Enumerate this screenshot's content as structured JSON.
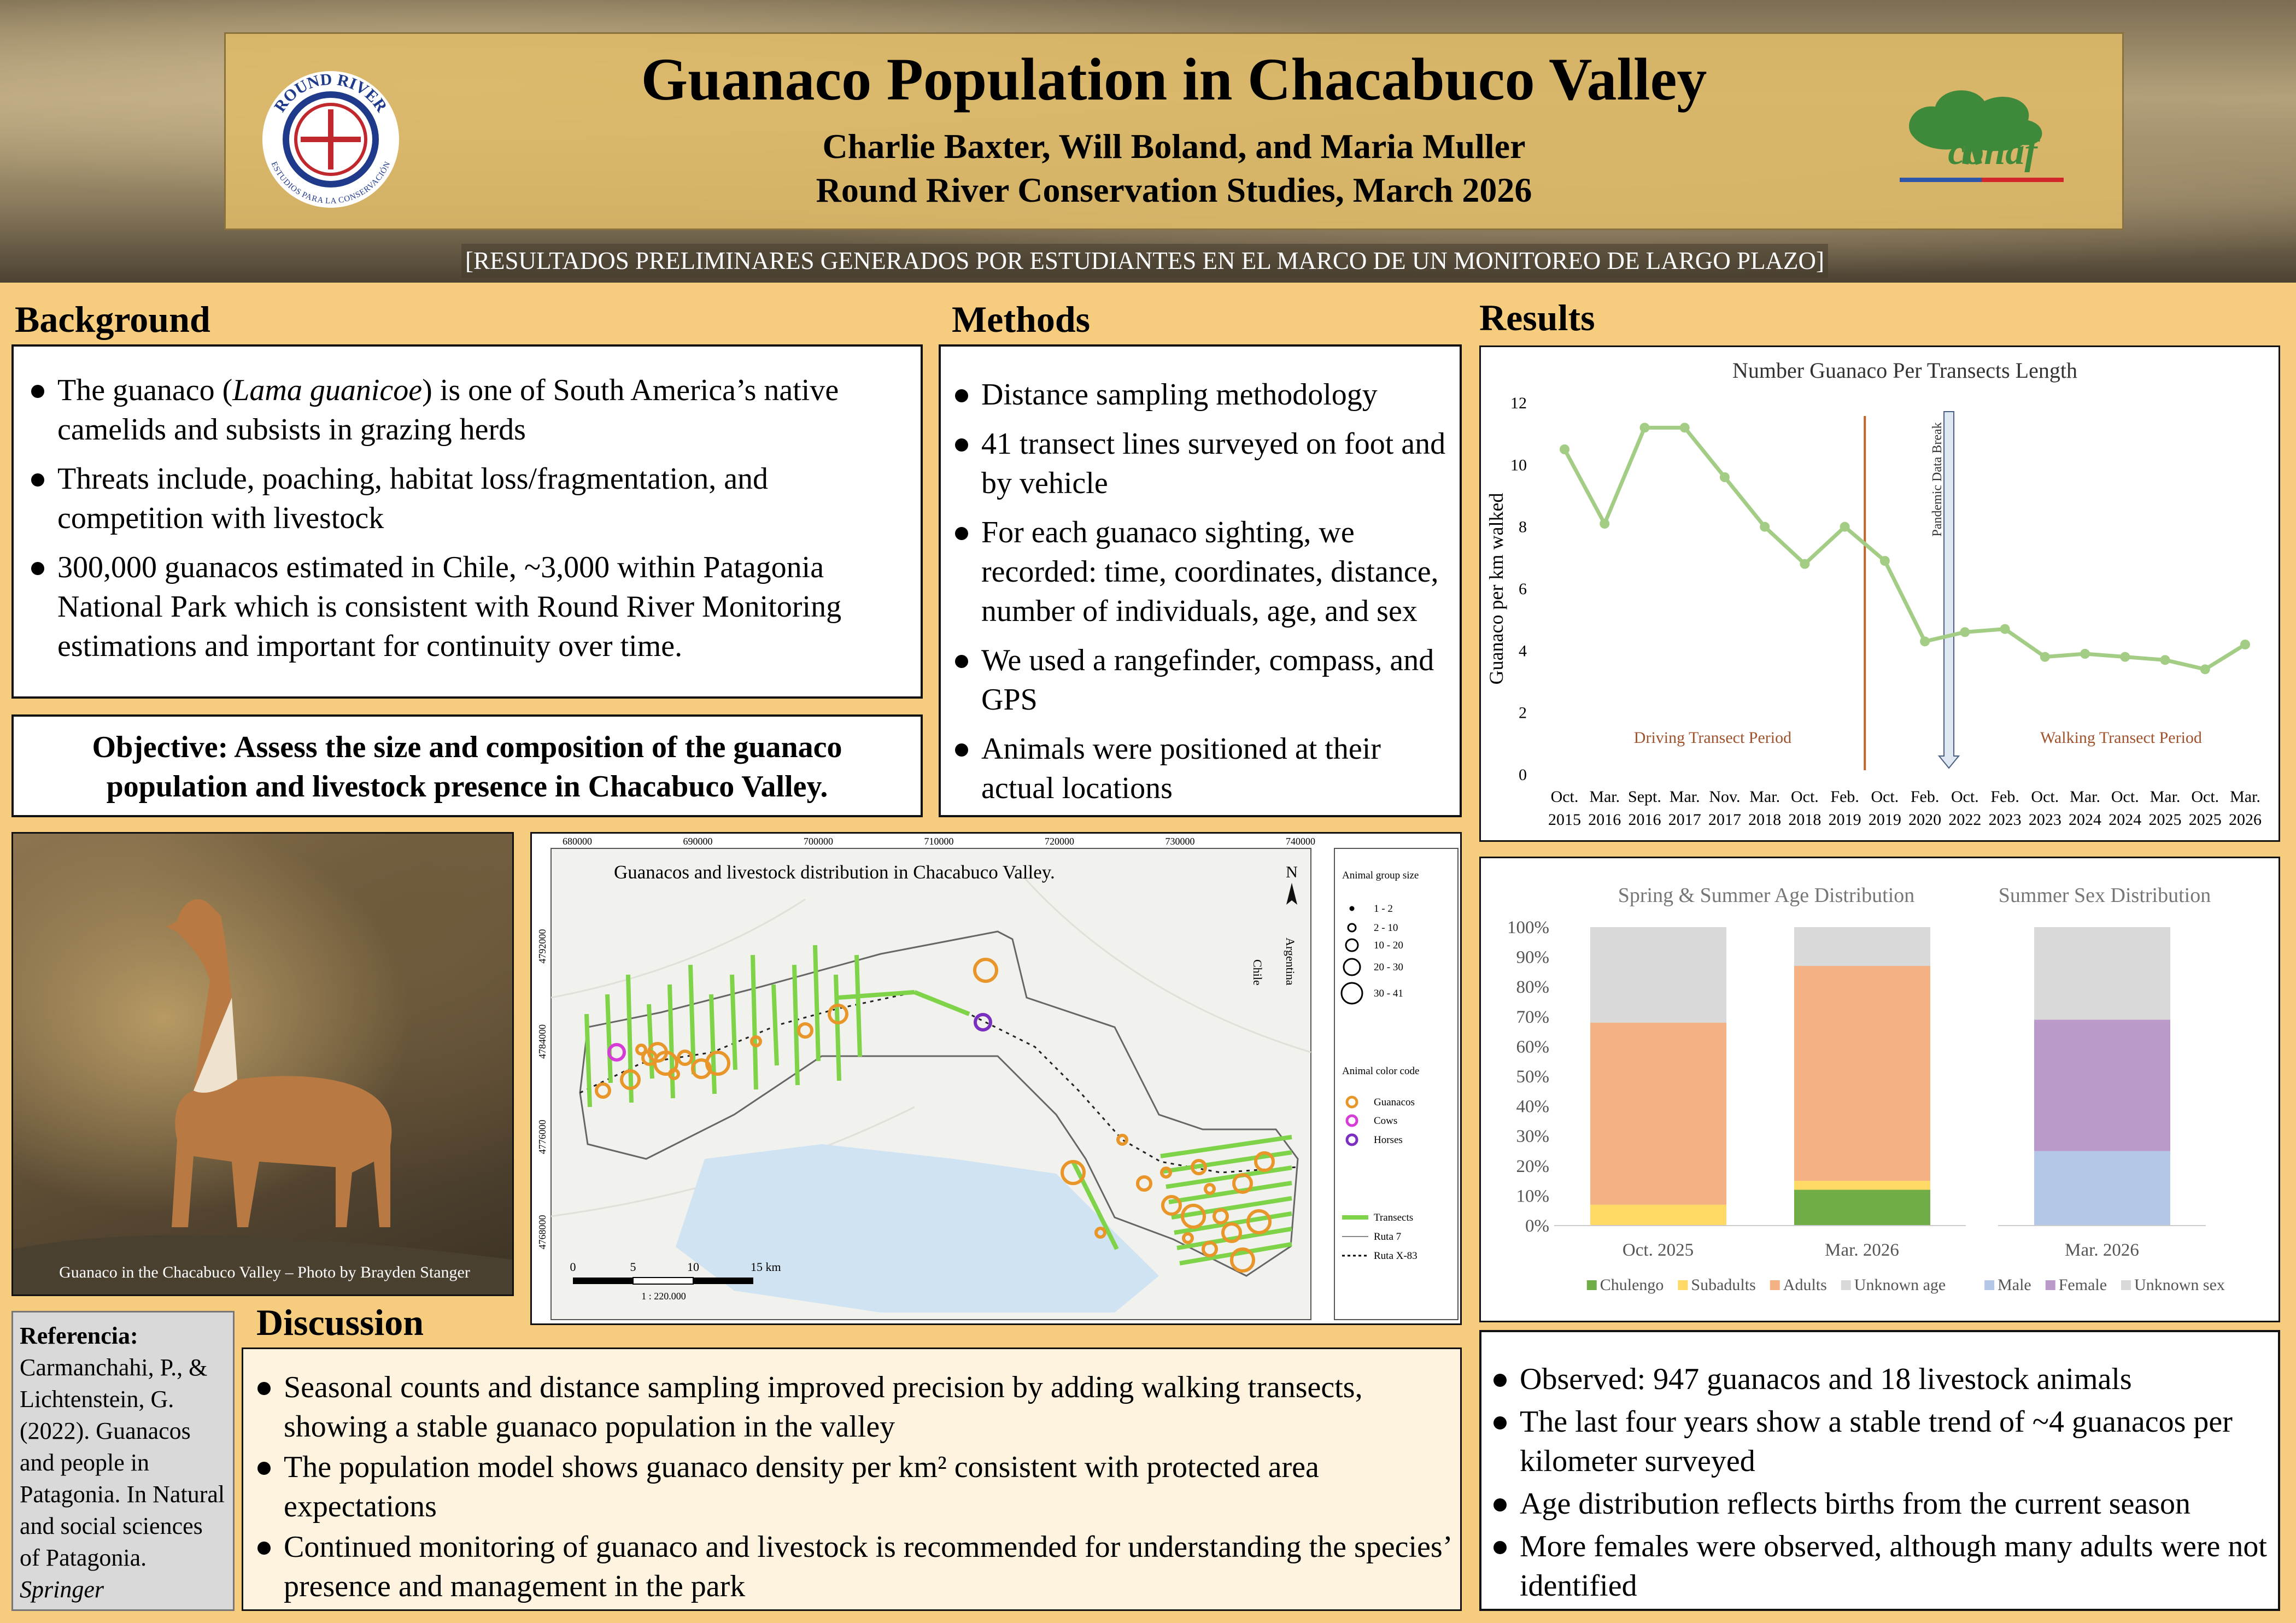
{
  "header": {
    "title": "Guanaco Population in Chacabuco Valley",
    "authors": "Charlie Baxter, Will Boland, and Maria Muller",
    "affiliation": "Round River Conservation Studies, March 2026",
    "banner": "[RESULTADOS PRELIMINARES GENERADOS POR ESTUDIANTES EN EL MARCO DE UN MONITOREO DE LARGO PLAZO]",
    "logo_left": "ROUND RIVER",
    "logo_left_subtitle": "ESTUDIOS PARA LA CONSERVACIÓN",
    "logo_right": "conaf"
  },
  "background": {
    "heading": "Background",
    "items": [
      [
        "The guanaco (",
        "Lama guanicoe",
        ") is one of South America’s native camelids and subsists in grazing herds"
      ],
      "Threats include, poaching, habitat loss/fragmentation, and competition with livestock",
      "300,000 guanacos estimated in Chile, ~3,000 within Patagonia National Park which is consistent with Round River Monitoring estimations and important for continuity over time."
    ]
  },
  "objective": "Objective: Assess the size and composition of the guanaco population and livestock presence in Chacabuco Valley.",
  "methods": {
    "heading": "Methods",
    "items": [
      "Distance sampling methodology",
      "41 transect lines surveyed on foot and by vehicle",
      "For each guanaco sighting, we recorded: time, coordinates, distance, number of individuals, age, and sex",
      "We used a rangefinder, compass, and GPS",
      "Animals were positioned at their actual locations"
    ]
  },
  "photo": {
    "caption": "Guanaco in the Chacabuco Valley – Photo by Brayden Stanger"
  },
  "reference": {
    "label": "Referencia:",
    "text": "Carmanchahi, P., & Lichtenstein, G. (2022). Guanacos and people in Patagonia. In Natural and social sciences of Patagonia.",
    "source": "Springer"
  },
  "discussion": {
    "heading": "Discussion",
    "items": [
      "Seasonal counts and distance sampling improved precision by adding walking transects, showing a stable guanaco population in the valley",
      "The population model shows guanaco density per km² consistent with protected area expectations",
      "Continued monitoring of guanaco and livestock is recommended for understanding the species’ presence and management in the park"
    ]
  },
  "results": {
    "heading": "Results",
    "items": [
      "Observed: 947 guanacos and 18 livestock animals",
      "The last four years show a stable trend of ~4 guanacos per kilometer surveyed",
      "Age distribution reflects births from the current season",
      "More females were observed, although many adults were not identified"
    ]
  },
  "map": {
    "title": "Guanacos and livestock distribution in Chacabuco Valley.",
    "xticks": [
      "680000",
      "690000",
      "700000",
      "710000",
      "720000",
      "730000",
      "740000"
    ],
    "yticks": [
      "4768000",
      "4776000",
      "4784000",
      "4792000"
    ],
    "size_legend": {
      "title": "Animal group size",
      "items": [
        "1 - 2",
        "2 - 10",
        "10 - 20",
        "20 - 30",
        "30 - 41"
      ]
    },
    "color_legend": {
      "title": "Animal color code",
      "items": [
        "Guanacos",
        "Cows",
        "Horses"
      ]
    },
    "line_legend": [
      "Transects",
      "Ruta 7",
      "Ruta X-83"
    ],
    "scale": [
      "0",
      "5",
      "10",
      "15 km"
    ],
    "ratio": "1 : 220.000",
    "north": "N",
    "countries": [
      "Chile",
      "Argentina"
    ]
  },
  "chart_data": [
    {
      "type": "line",
      "title": "Number Guanaco Per Transects Length",
      "y_label": "Guanaco per km walked",
      "categories": [
        "Oct. 2015",
        "Mar. 2016",
        "Sept. 2016",
        "Mar. 2017",
        "Nov. 2017",
        "Mar. 2018",
        "Oct. 2018",
        "Feb. 2019",
        "Oct. 2019",
        "Feb. 2020",
        "Oct. 2022",
        "Feb. 2023",
        "Oct. 2023",
        "Mar. 2024",
        "Oct. 2024",
        "Mar. 2025",
        "Oct. 2025",
        "Mar. 2026"
      ],
      "values": [
        10.5,
        8.1,
        11.2,
        11.2,
        9.6,
        8.0,
        6.8,
        8.0,
        6.9,
        4.3,
        4.6,
        4.7,
        3.8,
        3.9,
        3.8,
        3.7,
        3.4,
        4.2
      ],
      "color": "#a3cc85",
      "ylim": [
        0,
        12
      ],
      "yticks": [
        0,
        2,
        4,
        6,
        8,
        10,
        12
      ],
      "annotations": [
        "Driving Transect Period",
        "Walking Transect Period",
        "Pandemic Data Break"
      ]
    },
    {
      "type": "bar",
      "stacked": true,
      "title": "Spring & Summer Age Distribution",
      "categories": [
        "Oct. 2025",
        "Mar. 2026"
      ],
      "series": [
        {
          "name": "Chulengo",
          "color": "#70ad47",
          "values": [
            0,
            12
          ]
        },
        {
          "name": "Subadults",
          "color": "#ffd966",
          "values": [
            7,
            3
          ]
        },
        {
          "name": "Adults",
          "color": "#f4b183",
          "values": [
            61,
            72
          ]
        },
        {
          "name": "Unknown age",
          "color": "#d9d9d9",
          "values": [
            32,
            13
          ]
        }
      ],
      "ylim": [
        0,
        100
      ],
      "yticks": [
        {
          "value": 0,
          "label": "0%"
        },
        {
          "value": 10,
          "label": "10%"
        },
        {
          "value": 20,
          "label": "20%"
        },
        {
          "value": 30,
          "label": "30%"
        },
        {
          "value": 40,
          "label": "40%"
        },
        {
          "value": 50,
          "label": "50%"
        },
        {
          "value": 60,
          "label": "60%"
        },
        {
          "value": 70,
          "label": "70%"
        },
        {
          "value": 80,
          "label": "80%"
        },
        {
          "value": 90,
          "label": "90%"
        },
        {
          "value": 100,
          "label": "100%"
        }
      ]
    },
    {
      "type": "bar",
      "stacked": true,
      "title": "Summer Sex Distribution",
      "categories": [
        "Mar. 2026"
      ],
      "series": [
        {
          "name": "Male",
          "color": "#b4c7e7",
          "values": [
            25
          ]
        },
        {
          "name": "Female",
          "color": "#bb99c9",
          "values": [
            44
          ]
        },
        {
          "name": "Unknown sex",
          "color": "#d9d9d9",
          "values": [
            31
          ]
        }
      ],
      "ylim": [
        0,
        100
      ]
    }
  ]
}
